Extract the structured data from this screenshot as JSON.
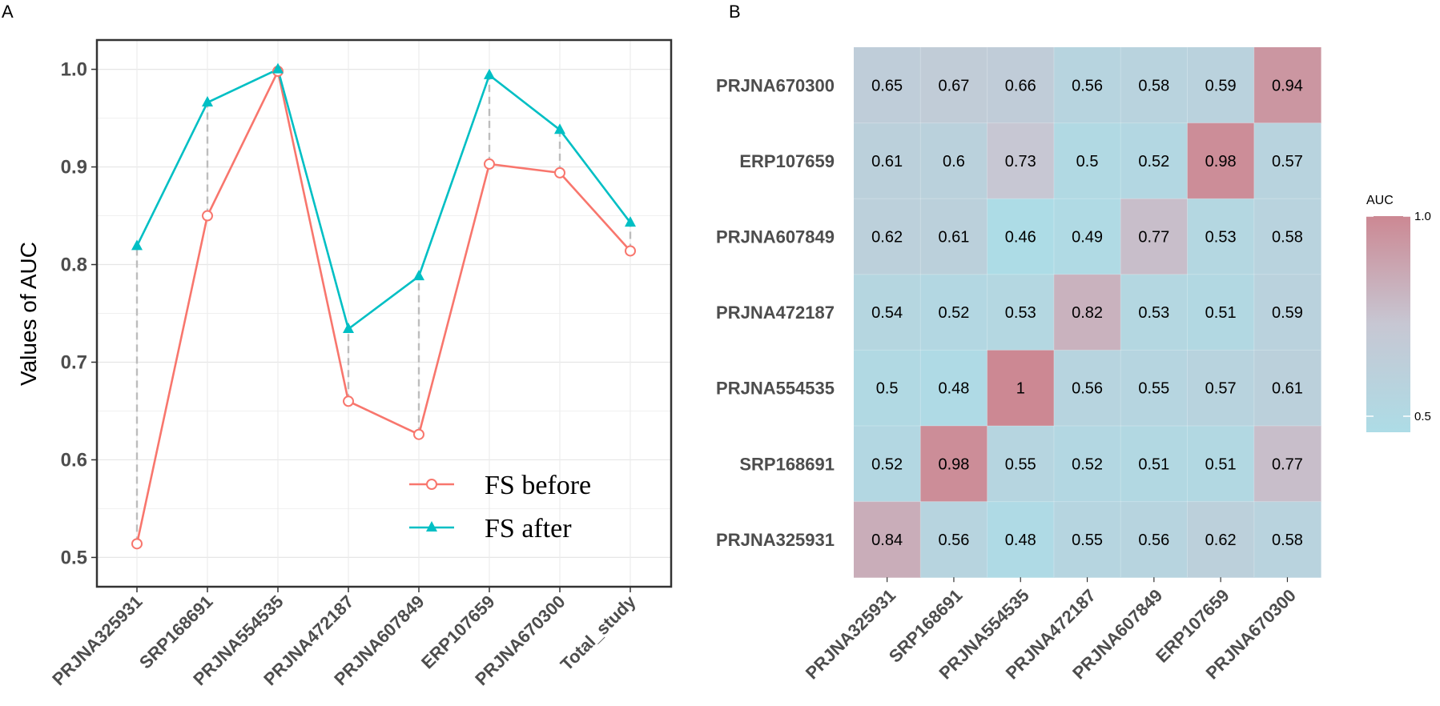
{
  "panels": {
    "a": "A",
    "b": "B"
  },
  "chart_data": [
    {
      "type": "line",
      "panel": "A",
      "title": "",
      "xlabel": "",
      "ylabel": "Values of AUC",
      "ylim": [
        0.47,
        1.03
      ],
      "yticks": [
        0.5,
        0.6,
        0.7,
        0.8,
        0.9,
        1.0
      ],
      "ytick_labels": [
        "0.5",
        "0.6",
        "0.7",
        "0.8",
        "0.9",
        "1.0"
      ],
      "categories": [
        "PRJNA325931",
        "SRP168691",
        "PRJNA554535",
        "PRJNA472187",
        "PRJNA607849",
        "ERP107659",
        "PRJNA670300",
        "Total_study"
      ],
      "series": [
        {
          "name": "FS before",
          "color": "#F8766D",
          "marker": "circle-open",
          "values": [
            0.514,
            0.85,
            0.998,
            0.66,
            0.626,
            0.903,
            0.894,
            0.814
          ]
        },
        {
          "name": "FS after",
          "color": "#00BFC4",
          "marker": "triangle",
          "values": [
            0.819,
            0.966,
            1.0,
            0.734,
            0.788,
            0.994,
            0.938,
            0.843
          ]
        }
      ],
      "connector_color": "#bdbdbd",
      "legend": {
        "position": "bottom-right",
        "entries": [
          "FS before",
          "FS after"
        ]
      },
      "grid": true
    },
    {
      "type": "heatmap",
      "panel": "B",
      "title": "",
      "rows": [
        "PRJNA670300",
        "ERP107659",
        "PRJNA607849",
        "PRJNA472187",
        "PRJNA554535",
        "SRP168691",
        "PRJNA325931"
      ],
      "columns": [
        "PRJNA325931",
        "SRP168691",
        "PRJNA554535",
        "PRJNA472187",
        "PRJNA607849",
        "ERP107659",
        "PRJNA670300"
      ],
      "values": [
        [
          0.65,
          0.67,
          0.66,
          0.56,
          0.58,
          0.59,
          0.94
        ],
        [
          0.61,
          0.6,
          0.73,
          0.5,
          0.52,
          0.98,
          0.57
        ],
        [
          0.62,
          0.61,
          0.46,
          0.49,
          0.77,
          0.53,
          0.58
        ],
        [
          0.54,
          0.52,
          0.53,
          0.82,
          0.53,
          0.51,
          0.59
        ],
        [
          0.5,
          0.48,
          1,
          0.56,
          0.55,
          0.57,
          0.61
        ],
        [
          0.52,
          0.98,
          0.55,
          0.52,
          0.51,
          0.51,
          0.77
        ],
        [
          0.84,
          0.56,
          0.48,
          0.55,
          0.56,
          0.62,
          0.58
        ]
      ],
      "colorbar": {
        "title": "AUC",
        "range": [
          0.46,
          1.0
        ],
        "ticks": [
          0.5,
          1.0
        ],
        "tick_labels": [
          "0.5",
          "1.0"
        ],
        "low_color": "#ADDCE6",
        "mid_color": "#C7C7D3",
        "high_color": "#CC8893"
      }
    }
  ]
}
